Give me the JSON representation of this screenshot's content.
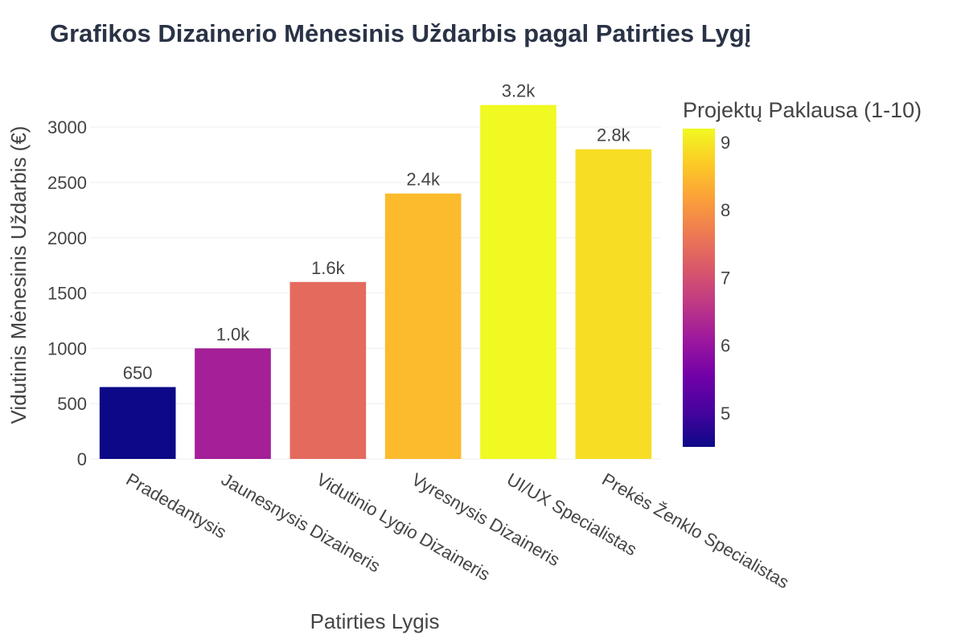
{
  "chart_data": {
    "type": "bar",
    "title": "Grafikos Dizainerio Mėnesinis Uždarbis pagal Patirties Lygį",
    "xlabel": "Patirties Lygis",
    "ylabel": "Vidutinis Mėnesinis Uždarbis (€)",
    "categories": [
      "Pradedantysis",
      "Jaunesnysis Dizaineris",
      "Vidutinio Lygio Dizaineris",
      "Vyresnysis Dizaineris",
      "UI/UX Specialistas",
      "Prekės Ženklo Specialistas"
    ],
    "values": [
      650,
      1000,
      1600,
      2400,
      3200,
      2800
    ],
    "value_labels": [
      "650",
      "1.0k",
      "1.6k",
      "2.4k",
      "3.2k",
      "2.8k"
    ],
    "color_values": [
      4.5,
      6.2,
      7.4,
      8.5,
      9.2,
      8.9
    ],
    "ylim": [
      0,
      3350
    ],
    "yticks": [
      0,
      500,
      1000,
      1500,
      2000,
      2500,
      3000
    ],
    "grid": true,
    "colorbar": {
      "title": "Projektų Paklausa (1-10)",
      "range": [
        4.5,
        9.2
      ],
      "ticks": [
        5,
        6,
        7,
        8,
        9
      ],
      "colorscale": [
        "#0d0887",
        "#46039f",
        "#7201a8",
        "#9c179e",
        "#bd3786",
        "#d8576b",
        "#ed7953",
        "#fb9f3a",
        "#fdca26",
        "#f0f921"
      ]
    }
  }
}
